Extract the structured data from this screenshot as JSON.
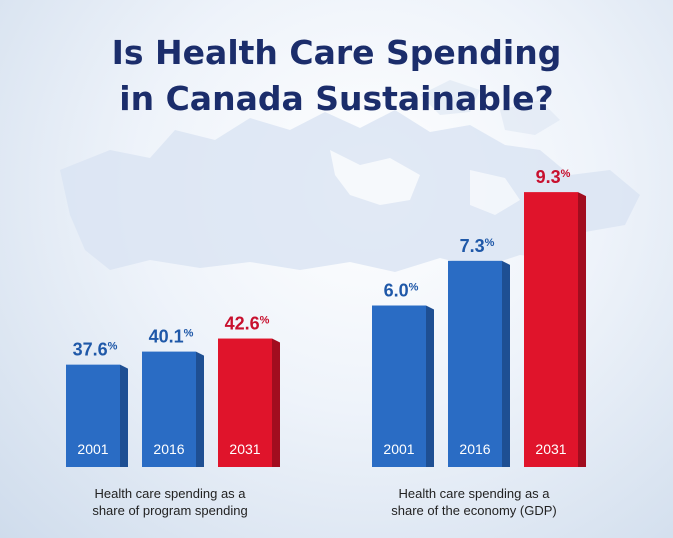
{
  "title": {
    "line1": "Is Health Care Spending",
    "line2": "in Canada Sustainable?"
  },
  "colors": {
    "title": "#1b2d6b",
    "blue": "#2a6cc4",
    "blue_side": "#1e4f93",
    "red": "#e0142b",
    "red_side": "#a10d1f",
    "blue_label": "#1f58a8",
    "red_label": "#c8102e"
  },
  "chart_data": [
    {
      "type": "bar",
      "categories": [
        "2001",
        "2016",
        "2031"
      ],
      "values": [
        37.6,
        40.1,
        42.6
      ],
      "value_labels": [
        "37.6",
        "40.1",
        "42.6"
      ],
      "unit": "%",
      "highlight": "2031",
      "caption": [
        "Health care spending as a",
        "share of program spending"
      ]
    },
    {
      "type": "bar",
      "categories": [
        "2001",
        "2016",
        "2031"
      ],
      "values": [
        6.0,
        7.3,
        9.3
      ],
      "value_labels": [
        "6.0",
        "7.3",
        "9.3"
      ],
      "unit": "%",
      "highlight": "2031",
      "caption": [
        "Health care spending as a",
        "share of the economy (GDP)"
      ]
    }
  ]
}
